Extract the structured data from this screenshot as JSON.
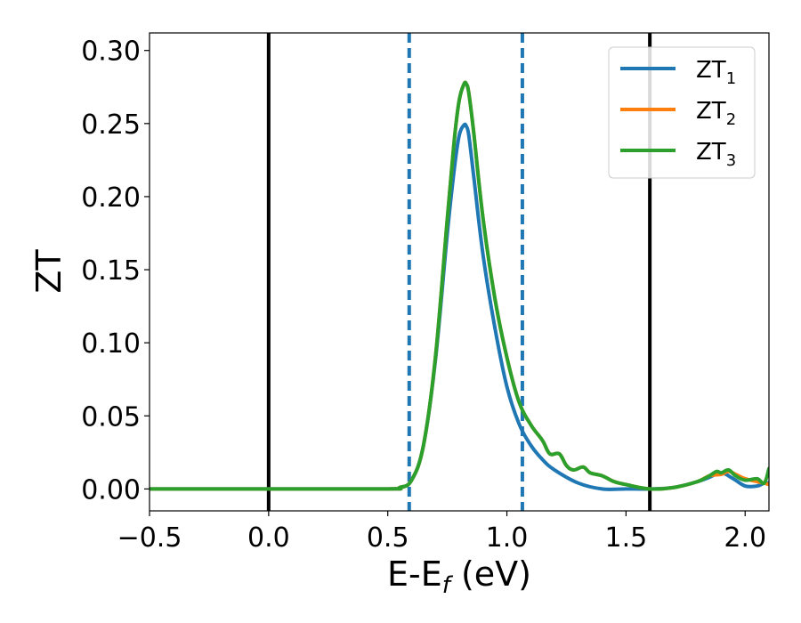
{
  "chart_data": {
    "type": "line",
    "xlabel": "E-E_f (eV)",
    "xlabel_main": "E-E",
    "xlabel_sub": "f",
    "xlabel_unit": " (eV)",
    "ylabel": "ZT",
    "xlim": [
      -0.5,
      2.1
    ],
    "ylim": [
      -0.015,
      0.312
    ],
    "xticks": [
      -0.5,
      0.0,
      0.5,
      1.0,
      1.5,
      2.0
    ],
    "xtick_labels": [
      "−0.5",
      "0.0",
      "0.5",
      "1.0",
      "1.5",
      "2.0"
    ],
    "yticks": [
      0.0,
      0.05,
      0.1,
      0.15,
      0.2,
      0.25,
      0.3
    ],
    "ytick_labels": [
      "0.00",
      "0.05",
      "0.10",
      "0.15",
      "0.20",
      "0.25",
      "0.30"
    ],
    "grid": false,
    "legend_position": "top-right",
    "vlines": [
      {
        "x": 0.0,
        "style": "solid",
        "color": "#000000"
      },
      {
        "x": 1.6,
        "style": "solid",
        "color": "#000000"
      },
      {
        "x": 0.59,
        "style": "dashed",
        "color": "#1f77b4"
      },
      {
        "x": 1.065,
        "style": "dashed",
        "color": "#1f77b4"
      }
    ],
    "series": [
      {
        "name": "ZT1",
        "label_main": "ZT",
        "label_sub": "1",
        "color": "#1f77b4",
        "x": [
          -0.5,
          0.0,
          0.5,
          0.55,
          0.6,
          0.65,
          0.7,
          0.75,
          0.78,
          0.8,
          0.82,
          0.83,
          0.84,
          0.86,
          0.9,
          0.95,
          1.0,
          1.05,
          1.1,
          1.15,
          1.2,
          1.3,
          1.4,
          1.5,
          1.6,
          1.7,
          1.8,
          1.85,
          1.9,
          1.95,
          2.0,
          2.05,
          2.08,
          2.1
        ],
        "y": [
          0.0,
          0.0,
          0.0,
          0.001,
          0.006,
          0.03,
          0.088,
          0.175,
          0.22,
          0.242,
          0.249,
          0.248,
          0.242,
          0.215,
          0.16,
          0.11,
          0.07,
          0.045,
          0.03,
          0.02,
          0.013,
          0.004,
          0.0,
          0.0,
          0.0,
          0.001,
          0.005,
          0.008,
          0.011,
          0.007,
          0.002,
          0.002,
          0.004,
          0.004
        ]
      },
      {
        "name": "ZT2",
        "label_main": "ZT",
        "label_sub": "2",
        "color": "#ff7f0e",
        "x": [
          -0.5,
          0.0,
          0.5,
          0.55,
          0.6,
          0.65,
          0.7,
          0.75,
          0.78,
          0.8,
          0.82,
          0.83,
          0.84,
          0.86,
          0.9,
          0.95,
          1.0,
          1.05,
          1.1,
          1.15,
          1.18,
          1.22,
          1.25,
          1.28,
          1.32,
          1.35,
          1.4,
          1.45,
          1.5,
          1.6,
          1.7,
          1.8,
          1.85,
          1.9,
          1.93,
          1.96,
          2.0,
          2.05,
          2.08,
          2.1
        ],
        "y": [
          0.0,
          0.0,
          0.0,
          0.001,
          0.006,
          0.03,
          0.09,
          0.185,
          0.24,
          0.266,
          0.277,
          0.277,
          0.271,
          0.245,
          0.185,
          0.13,
          0.09,
          0.06,
          0.044,
          0.033,
          0.024,
          0.024,
          0.016,
          0.013,
          0.015,
          0.011,
          0.009,
          0.005,
          0.003,
          0.0,
          0.001,
          0.005,
          0.009,
          0.01,
          0.012,
          0.01,
          0.007,
          0.005,
          0.004,
          0.003
        ]
      },
      {
        "name": "ZT3",
        "label_main": "ZT",
        "label_sub": "3",
        "color": "#2ca02c",
        "x": [
          -0.5,
          0.0,
          0.5,
          0.55,
          0.6,
          0.65,
          0.7,
          0.75,
          0.78,
          0.8,
          0.82,
          0.83,
          0.84,
          0.86,
          0.9,
          0.95,
          1.0,
          1.05,
          1.1,
          1.15,
          1.18,
          1.22,
          1.25,
          1.28,
          1.32,
          1.35,
          1.4,
          1.45,
          1.5,
          1.6,
          1.7,
          1.8,
          1.85,
          1.88,
          1.9,
          1.93,
          1.96,
          2.0,
          2.05,
          2.08,
          2.1
        ],
        "y": [
          0.0,
          0.0,
          0.0,
          0.001,
          0.006,
          0.03,
          0.09,
          0.185,
          0.24,
          0.266,
          0.277,
          0.277,
          0.271,
          0.245,
          0.185,
          0.13,
          0.09,
          0.06,
          0.044,
          0.033,
          0.024,
          0.024,
          0.016,
          0.013,
          0.015,
          0.011,
          0.009,
          0.005,
          0.003,
          0.0,
          0.001,
          0.005,
          0.009,
          0.012,
          0.011,
          0.013,
          0.009,
          0.006,
          0.007,
          0.004,
          0.014
        ]
      }
    ]
  }
}
